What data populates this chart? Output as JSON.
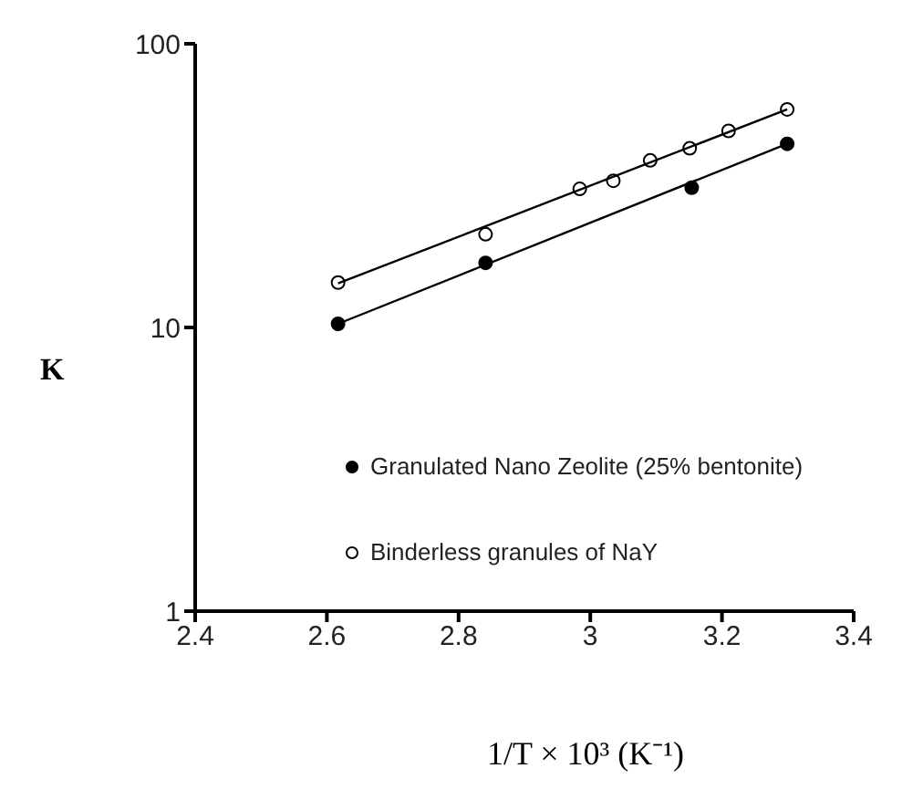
{
  "chart_data": {
    "type": "scatter",
    "xlabel": "1/T × 10³ (K⁻¹)",
    "ylabel": "K",
    "xlim": [
      2.4,
      3.4
    ],
    "xticks": [
      2.4,
      2.6,
      2.8,
      3,
      3.2,
      3.4
    ],
    "ylim": [
      1,
      100
    ],
    "yticks": [
      1,
      10,
      100
    ],
    "log": "y",
    "grid": false,
    "legend": "right",
    "marker": "circle",
    "series": [
      {
        "name": "Granulated Nano Zeolite (25% bentonite)",
        "color": "#000000",
        "x": [
          2.617,
          2.841,
          3.154,
          3.299
        ],
        "values": [
          10.3,
          16.9,
          31.1,
          44.4
        ]
      },
      {
        "name": "Binderless granules of NaY",
        "color": "#ffffff",
        "x": [
          2.617,
          2.841,
          2.984,
          3.035,
          3.091,
          3.151,
          3.21,
          3.299
        ],
        "values": [
          14.4,
          21.3,
          30.8,
          32.9,
          38.8,
          42.8,
          49.3,
          58.7
        ]
      },
      {
        "type": "line",
        "marker": "none",
        "color": "#000000",
        "x": [
          2.617,
          3.299
        ],
        "values": [
          10.3,
          44.4
        ]
      },
      {
        "type": "line",
        "marker": "none",
        "color": "#000000",
        "x": [
          2.617,
          3.299
        ],
        "values": [
          14.3,
          58.7
        ]
      }
    ]
  }
}
